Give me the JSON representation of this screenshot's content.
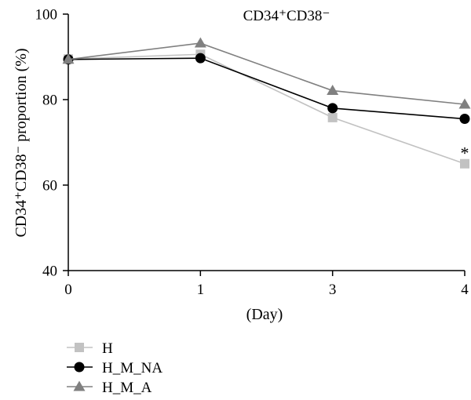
{
  "chart_data": {
    "type": "line",
    "title": "CD34⁺CD38⁻",
    "xlabel": "(Day)",
    "ylabel": "CD34⁺CD38⁻ proportion (%)",
    "categories": [
      "0",
      "1",
      "3",
      "4"
    ],
    "ylim": [
      40,
      100
    ],
    "yticks": [
      40,
      60,
      80,
      100
    ],
    "grid": false,
    "legend_position": "bottom-left",
    "series": [
      {
        "name": "H",
        "values": [
          89.5,
          90.6,
          75.8,
          65.0
        ],
        "color": "#c2c2c2",
        "marker": "square"
      },
      {
        "name": "H_M_NA",
        "values": [
          89.4,
          89.7,
          78.0,
          75.5
        ],
        "color": "#000000",
        "marker": "circle"
      },
      {
        "name": "H_M_A",
        "values": [
          89.4,
          93.2,
          82.1,
          78.9
        ],
        "color": "#808080",
        "marker": "triangle"
      }
    ],
    "annotations": [
      {
        "text": "*",
        "x": "4",
        "y": 68
      }
    ]
  }
}
